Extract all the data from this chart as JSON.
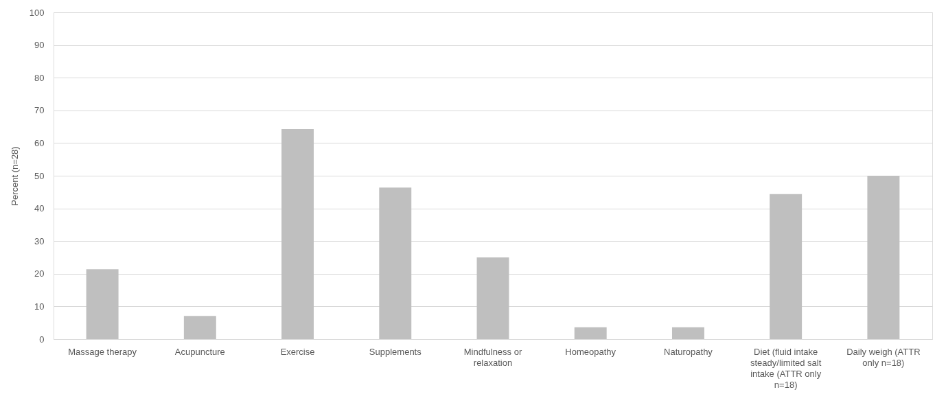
{
  "chart_data": {
    "type": "bar",
    "ylabel": "Percent (n=28)",
    "categories": [
      "Massage therapy",
      "Acupuncture",
      "Exercise",
      "Supplements",
      "Mindfulness or relaxation",
      "Homeopathy",
      "Naturopathy",
      "Diet (fluid intake steady/limited salt intake (ATTR only n=18)",
      "Daily weigh (ATTR only n=18)"
    ],
    "values": [
      21.4,
      7.1,
      64.3,
      46.4,
      25.0,
      3.6,
      3.6,
      44.4,
      50.0
    ],
    "color": "#bfbfbf",
    "ylim": [
      0,
      100
    ],
    "yticks": [
      0,
      10,
      20,
      30,
      40,
      50,
      60,
      70,
      80,
      90,
      100
    ],
    "grid": "y"
  }
}
